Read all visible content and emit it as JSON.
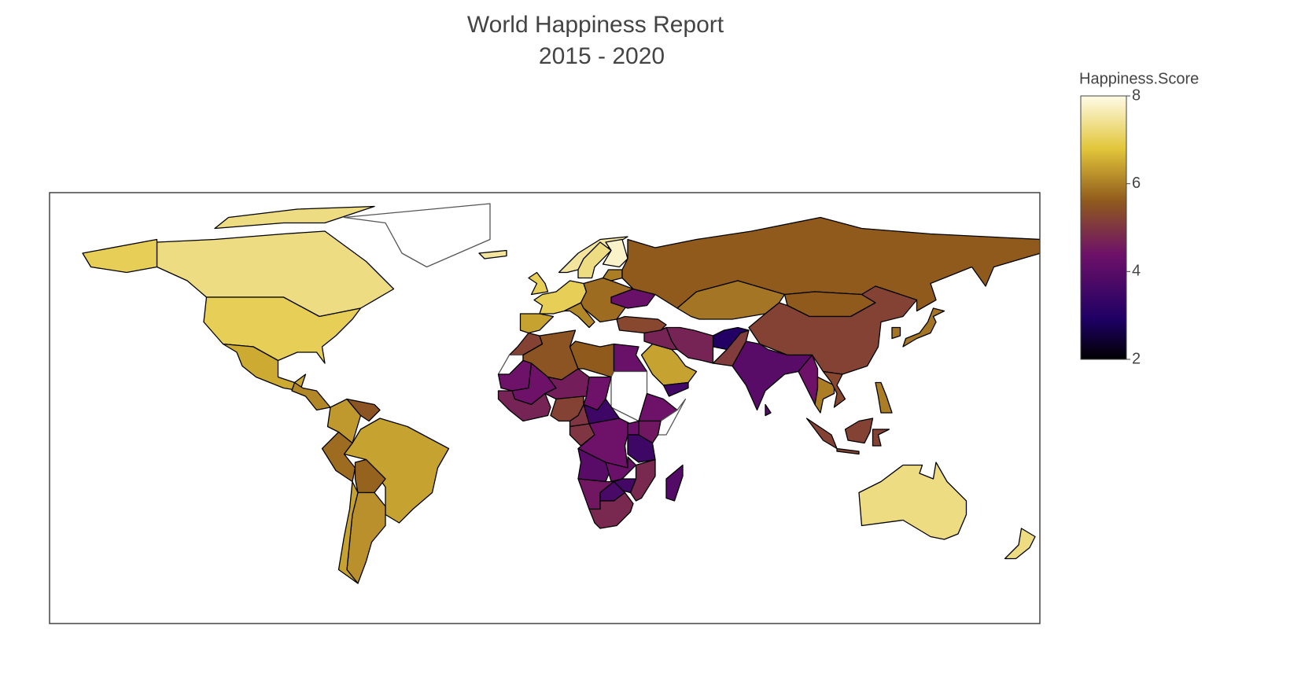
{
  "chart_data": {
    "type": "choropleth",
    "title": "World Happiness Report",
    "subtitle": "2015 - 2020",
    "colorbar_title": "Happiness.Score",
    "zlim": [
      2,
      8
    ],
    "zticks": [
      2,
      4,
      6,
      8
    ],
    "colorscale": [
      [
        0,
        "#000000"
      ],
      [
        0.15,
        "#1e0064"
      ],
      [
        0.4,
        "#6e1168"
      ],
      [
        0.6,
        "#8f5a1c"
      ],
      [
        0.8,
        "#e2c63a"
      ],
      [
        1,
        "#fffbe6"
      ]
    ],
    "values": [
      7.3,
      7.0,
      7.0,
      6.5,
      null,
      6.1,
      6.3,
      5.5,
      6.4,
      5.8,
      5.7,
      6.2,
      6.4,
      7.5,
      7.5,
      7.3,
      7.8,
      7.0,
      7.0,
      6.4,
      6.1,
      5.8,
      4.3,
      6.0,
      5.6,
      5.9,
      5.6,
      5.2,
      4.0,
      5.1,
      3.0,
      4.7,
      5.3,
      6.4,
      3.6,
      4.7,
      4.4,
      6.0,
      5.3,
      5.2,
      6.0,
      5.9,
      5.9,
      7.3,
      7.3,
      5.2,
      null,
      5.5,
      5.6,
      4.3,
      null,
      4.4,
      4.4,
      4.6,
      4.4,
      4.7,
      5.2,
      3.5,
      5.0,
      5.0,
      4.4,
      4.4,
      null,
      4.5,
      4.3,
      3.5,
      4.0,
      4.3,
      4.8,
      3.6,
      4.5,
      3.7,
      4.8,
      3.9
    ]
  }
}
